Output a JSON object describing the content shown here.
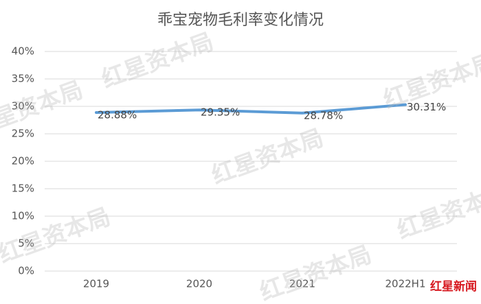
{
  "chart_data": {
    "type": "line",
    "title": "乖宝宠物毛利率变化情况",
    "categories": [
      "2019",
      "2020",
      "2021",
      "2022H1"
    ],
    "series": [
      {
        "name": "毛利率",
        "color": "#5b9bd5",
        "values": [
          28.88,
          29.35,
          28.78,
          30.31
        ],
        "value_labels": [
          "28.88%",
          "29.35%",
          "28.78%",
          "30.31%"
        ]
      }
    ],
    "ylim": [
      0,
      40
    ],
    "yticks": [
      {
        "value": 0,
        "label": "0%"
      },
      {
        "value": 5,
        "label": "5%"
      },
      {
        "value": 10,
        "label": "10%"
      },
      {
        "value": 15,
        "label": "15%"
      },
      {
        "value": 20,
        "label": "20%"
      },
      {
        "value": 25,
        "label": "25%"
      },
      {
        "value": 30,
        "label": "30%"
      },
      {
        "value": 35,
        "label": "35%"
      },
      {
        "value": 40,
        "label": "40%"
      }
    ],
    "grid": true,
    "watermark": "红星资本局",
    "source_logo": "红星新闻"
  }
}
